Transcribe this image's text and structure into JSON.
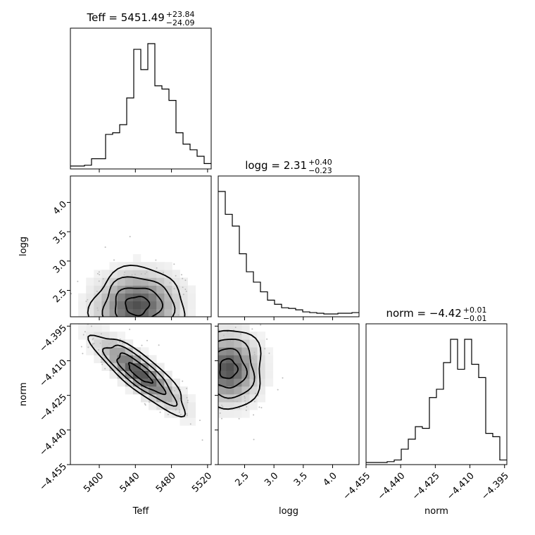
{
  "chart_data": {
    "type": "corner",
    "parameters": [
      "Teff",
      "logg",
      "norm"
    ],
    "titles": [
      {
        "param": "Teff",
        "label": "Teff = ",
        "value": "5451.49",
        "plus": "+23.84",
        "minus": "−24.09"
      },
      {
        "param": "logg",
        "label": "logg = ",
        "value": "2.31",
        "plus": "+0.40",
        "minus": "−0.23"
      },
      {
        "param": "norm",
        "label": "norm = ",
        "value": "−4.42",
        "plus": "+0.01",
        "minus": "−0.01"
      }
    ],
    "axes": {
      "Teff": {
        "label": "Teff",
        "range": [
          5368,
          5524
        ],
        "ticks": [
          5400,
          5440,
          5480,
          5520
        ],
        "tick_labels": [
          "5400",
          "5440",
          "5480",
          "5520"
        ]
      },
      "logg": {
        "label": "logg",
        "range": [
          2.05,
          4.45
        ],
        "ticks": [
          2.5,
          3.0,
          3.5,
          4.0
        ],
        "tick_labels": [
          "2.5",
          "3.0",
          "3.5",
          "4.0"
        ]
      },
      "norm": {
        "label": "norm",
        "range": [
          -4.455,
          -4.394
        ],
        "ticks": [
          -4.455,
          -4.44,
          -4.425,
          -4.41,
          -4.395
        ],
        "tick_labels": [
          "−4.455",
          "−4.440",
          "−4.425",
          "−4.410",
          "−4.395"
        ]
      }
    },
    "histograms": {
      "Teff": {
        "edges": [
          5368,
          5375.8,
          5383.6,
          5391.4,
          5399.2,
          5407,
          5414.8,
          5422.6,
          5430.4,
          5438.2,
          5446,
          5453.8,
          5461.6,
          5469.4,
          5477.2,
          5485,
          5492.8,
          5500.6,
          5508.4,
          5516.2,
          5524
        ],
        "counts": [
          1,
          1,
          2,
          10,
          10,
          40,
          42,
          52,
          85,
          145,
          120,
          152,
          100,
          96,
          82,
          42,
          28,
          21,
          13,
          4
        ]
      },
      "logg": {
        "edges": [
          2.05,
          2.17,
          2.29,
          2.41,
          2.53,
          2.65,
          2.77,
          2.89,
          3.01,
          3.13,
          3.25,
          3.37,
          3.49,
          3.61,
          3.73,
          3.85,
          3.97,
          4.09,
          4.21,
          4.33,
          4.45
        ],
        "counts": [
          178,
          145,
          128,
          88,
          62,
          47,
          33,
          21,
          15,
          10,
          9,
          7,
          4,
          3,
          2,
          1,
          1,
          2,
          2,
          3
        ]
      },
      "norm": {
        "edges": [
          -4.455,
          -4.45195,
          -4.4489,
          -4.44585,
          -4.4428,
          -4.43975,
          -4.4367,
          -4.43365,
          -4.4306,
          -4.42755,
          -4.4245,
          -4.42145,
          -4.4184,
          -4.41535,
          -4.4123,
          -4.40925,
          -4.4062,
          -4.40315,
          -4.4001,
          -4.39705,
          -4.394
        ],
        "counts": [
          0,
          0,
          0,
          1,
          3,
          16,
          28,
          43,
          41,
          78,
          88,
          120,
          148,
          112,
          148,
          118,
          102,
          35,
          31,
          3
        ]
      }
    },
    "pairs": [
      {
        "x": "Teff",
        "y": "logg",
        "center": [
          5442,
          2.24
        ],
        "sigma": [
          26,
          0.32
        ],
        "rho": 0.05
      },
      {
        "x": "Teff",
        "y": "norm",
        "center": [
          5445,
          -4.4155
        ],
        "sigma": [
          26,
          0.0085
        ],
        "rho": -0.85
      },
      {
        "x": "logg",
        "y": "norm",
        "center": [
          2.22,
          -4.4135
        ],
        "sigma": [
          0.3,
          0.0085
        ],
        "rho": 0.0
      }
    ],
    "contour_levels": [
      "0.5 sigma",
      "1 sigma",
      "1.5 sigma",
      "2 sigma"
    ]
  }
}
